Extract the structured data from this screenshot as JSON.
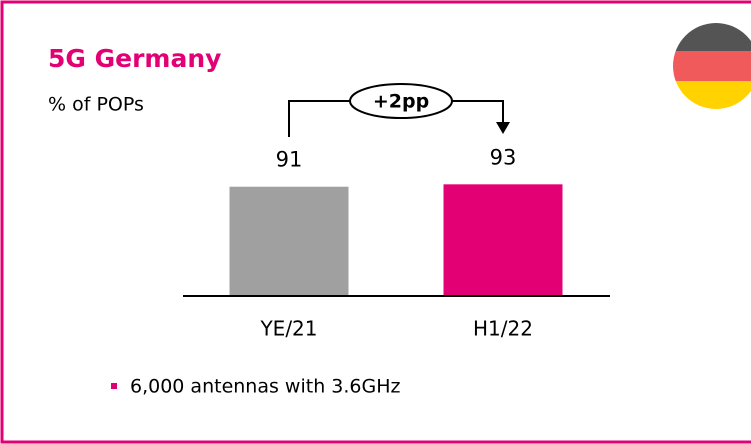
{
  "chart_data": {
    "type": "bar",
    "title": "5G Germany",
    "subtitle": "% of POPs",
    "categories": [
      "YE/21",
      "H1/22"
    ],
    "values": [
      91,
      93
    ],
    "colors": [
      "#a0a0a0",
      "#e20074"
    ],
    "ylim": [
      0,
      100
    ],
    "annotation": "+2pp",
    "bullets": [
      "6,000 antennas with 3.6GHz"
    ]
  }
}
